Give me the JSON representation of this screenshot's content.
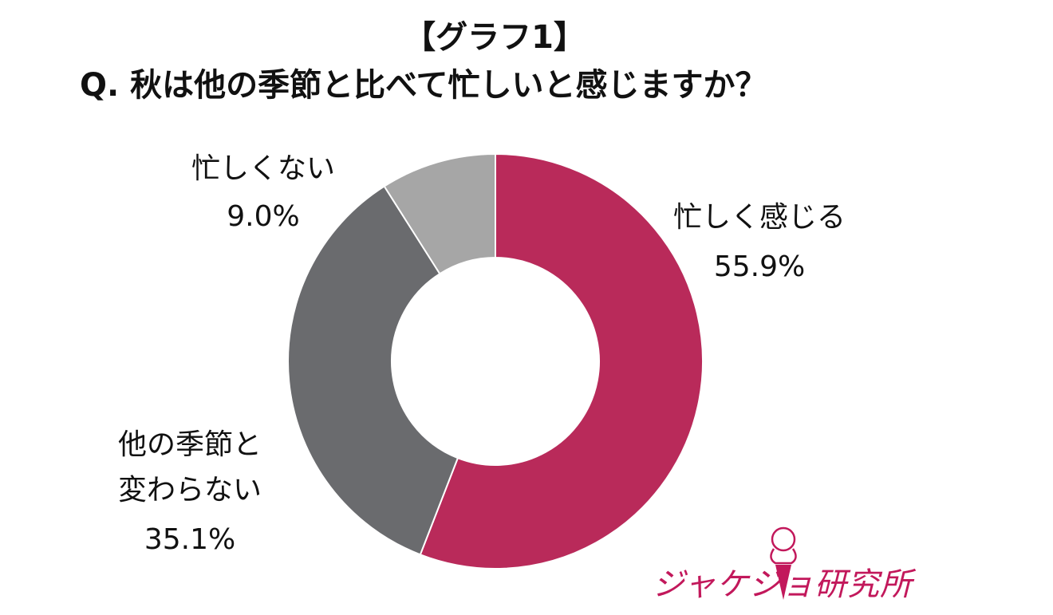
{
  "header": {
    "title": "【グラフ1】",
    "question": "Q. 秋は他の季節と比べて忙しいと感じますか？"
  },
  "chart_data": {
    "type": "pie",
    "style": "donut",
    "categories": [
      "忙しく感じる",
      "他の季節と変わらない",
      "忙しくない"
    ],
    "values": [
      55.9,
      35.1,
      9.0
    ],
    "unit": "%",
    "colors": [
      "#b92a5a",
      "#6a6b6e",
      "#a6a6a6"
    ],
    "labels": [
      {
        "lines": [
          "忙しく感じる"
        ],
        "value": "55.9%"
      },
      {
        "lines": [
          "他の季節と",
          "変わらない"
        ],
        "value": "35.1%"
      },
      {
        "lines": [
          "忙しくない"
        ],
        "value": "9.0%"
      }
    ]
  },
  "logo": {
    "text": "ジャケジョ研究所",
    "color": "#c2185b"
  }
}
